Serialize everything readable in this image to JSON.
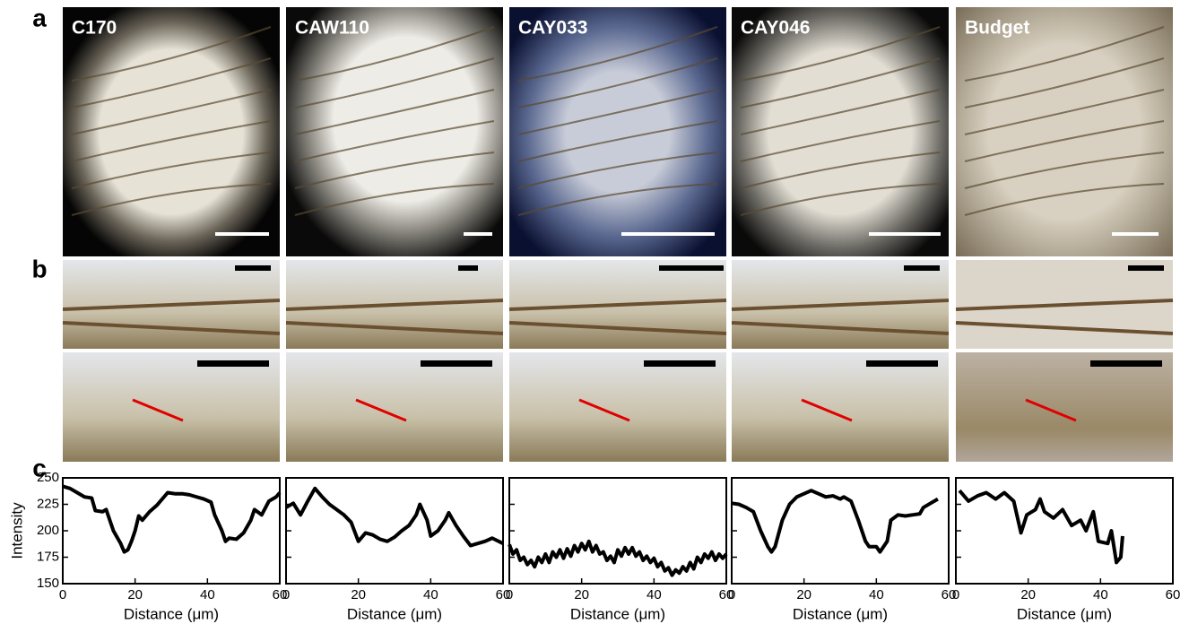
{
  "panels": [
    "a",
    "b",
    "c"
  ],
  "samples": [
    "C170",
    "CAW110",
    "CAY033",
    "CAY046",
    "Budget"
  ],
  "chart_data": [
    {
      "type": "line",
      "xlabel": "Distance (μm)",
      "ylabel": "Intensity",
      "color": "#000000",
      "xlim": [
        0,
        60
      ],
      "ylim": [
        150,
        250
      ],
      "xticks": [
        0,
        20,
        40,
        60
      ],
      "yticks": [
        150,
        175,
        200,
        225,
        250
      ],
      "x": [
        0,
        2,
        4,
        6,
        8,
        9,
        11,
        12,
        14,
        16,
        17,
        18,
        19,
        20,
        21,
        22,
        24,
        26,
        28,
        29,
        31,
        33,
        35,
        37,
        39,
        41,
        42,
        44,
        45,
        46,
        48,
        50,
        52,
        53,
        55,
        57,
        59,
        60
      ],
      "values": [
        242,
        240,
        236,
        232,
        231,
        219,
        218,
        220,
        200,
        188,
        180,
        182,
        190,
        200,
        214,
        210,
        218,
        224,
        232,
        236,
        235,
        235,
        234,
        232,
        230,
        227,
        215,
        200,
        190,
        193,
        192,
        198,
        210,
        220,
        215,
        228,
        232,
        236
      ]
    },
    {
      "type": "line",
      "xlabel": "Distance (μm)",
      "color": "#000000",
      "xlim": [
        0,
        60
      ],
      "ylim": [
        150,
        250
      ],
      "xticks": [
        0,
        20,
        40,
        60
      ],
      "yticks": [
        150,
        175,
        200,
        225,
        250
      ],
      "x": [
        0,
        2,
        4,
        6,
        8,
        10,
        12,
        14,
        16,
        18,
        20,
        22,
        24,
        26,
        28,
        30,
        32,
        34,
        36,
        37,
        39,
        40,
        42,
        44,
        45,
        47,
        49,
        51,
        53,
        55,
        57,
        60
      ],
      "values": [
        222,
        226,
        215,
        228,
        240,
        232,
        225,
        220,
        215,
        208,
        190,
        198,
        196,
        192,
        190,
        194,
        200,
        205,
        215,
        225,
        210,
        195,
        200,
        210,
        217,
        205,
        195,
        186,
        188,
        190,
        193,
        188
      ]
    },
    {
      "type": "line",
      "xlabel": "Distance (μm)",
      "color": "#000000",
      "xlim": [
        0,
        60
      ],
      "ylim": [
        150,
        250
      ],
      "xticks": [
        0,
        20,
        40,
        60
      ],
      "yticks": [
        150,
        175,
        200,
        225,
        250
      ],
      "x": [
        0,
        1,
        2,
        3,
        4,
        5,
        6,
        7,
        8,
        9,
        10,
        11,
        12,
        13,
        14,
        15,
        16,
        17,
        18,
        19,
        20,
        21,
        22,
        23,
        24,
        25,
        26,
        27,
        28,
        29,
        30,
        31,
        32,
        33,
        34,
        35,
        36,
        37,
        38,
        39,
        40,
        41,
        42,
        43,
        44,
        45,
        46,
        47,
        48,
        49,
        50,
        51,
        52,
        53,
        54,
        55,
        56,
        57,
        58,
        59,
        60
      ],
      "values": [
        187,
        178,
        182,
        172,
        175,
        168,
        172,
        166,
        175,
        170,
        178,
        170,
        180,
        175,
        182,
        174,
        183,
        176,
        186,
        180,
        188,
        182,
        190,
        180,
        186,
        178,
        180,
        172,
        176,
        170,
        182,
        176,
        184,
        178,
        184,
        176,
        180,
        172,
        176,
        170,
        174,
        166,
        170,
        162,
        165,
        158,
        163,
        160,
        166,
        162,
        170,
        164,
        175,
        170,
        178,
        174,
        180,
        172,
        178,
        174,
        178
      ]
    },
    {
      "type": "line",
      "xlabel": "Distance (μm)",
      "color": "#000000",
      "xlim": [
        0,
        60
      ],
      "ylim": [
        150,
        250
      ],
      "xticks": [
        0,
        20,
        40,
        60
      ],
      "yticks": [
        150,
        175,
        200,
        225,
        250
      ],
      "x": [
        0,
        2,
        4,
        6,
        8,
        10,
        11,
        12,
        14,
        16,
        18,
        20,
        22,
        24,
        26,
        28,
        30,
        31,
        33,
        35,
        37,
        38,
        40,
        41,
        43,
        44,
        46,
        48,
        50,
        52,
        53,
        55,
        57
      ],
      "values": [
        226,
        225,
        222,
        218,
        200,
        185,
        180,
        185,
        210,
        225,
        232,
        235,
        238,
        235,
        232,
        233,
        230,
        232,
        228,
        210,
        190,
        185,
        185,
        180,
        190,
        210,
        215,
        214,
        215,
        216,
        222,
        226,
        230
      ]
    },
    {
      "type": "line",
      "xlabel": "Distance (μm)",
      "color": "#000000",
      "xlim": [
        0,
        60
      ],
      "ylim": [
        150,
        250
      ],
      "xticks": [
        0,
        20,
        40,
        60
      ],
      "yticks": [
        150,
        175,
        200,
        225,
        250
      ],
      "x": [
        1,
        3.5,
        6,
        8.4,
        11,
        13.4,
        16,
        18,
        19.6,
        22,
        23.3,
        24.5,
        27,
        29.5,
        32,
        34.5,
        36,
        38,
        39.4,
        42,
        43,
        44.4,
        45.6,
        46.1
      ],
      "values": [
        238,
        228,
        233,
        236,
        230,
        236,
        228,
        198,
        215,
        220,
        230,
        218,
        212,
        220,
        205,
        210,
        200,
        218,
        190,
        188,
        200,
        170,
        175,
        195
      ]
    }
  ]
}
